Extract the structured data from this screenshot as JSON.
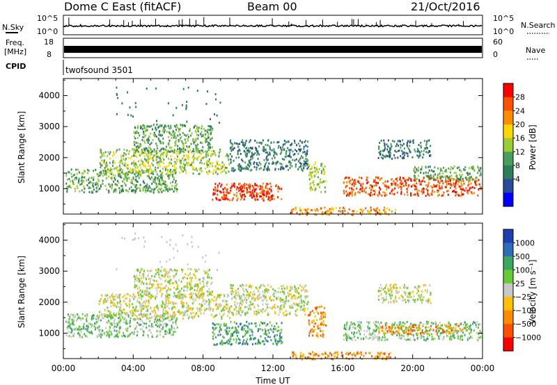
{
  "header": {
    "station": "Dome C East (fitACF)",
    "beam": "Beam 00",
    "date": "21/Oct/2016"
  },
  "top_panels": {
    "nsky_label": "N.Sky",
    "nsky_ticks": [
      "10^5",
      "10^0"
    ],
    "nsearch_label": "N.Search",
    "freq_label_line1": "Freq.",
    "freq_label_line2": "[MHz]",
    "freq_ticks": [
      "18",
      "8"
    ],
    "nave_label": "Nave",
    "nave_ticks": [
      "60",
      "0"
    ],
    "cpid_label": "CPID",
    "cpid_value": "twofsound 3501"
  },
  "chart_data": [
    {
      "type": "heatmap",
      "panel": "power",
      "ylabel": "Slant Range [km]",
      "xlabel": "",
      "x_ticks": [
        "00:00",
        "04:00",
        "08:00",
        "12:00",
        "16:00",
        "20:00",
        "00:00"
      ],
      "xlim_hours": [
        0,
        24
      ],
      "y_ticks": [
        1000,
        2000,
        3000,
        4000
      ],
      "ylim": [
        180,
        4550
      ],
      "colorbar_label": "Power [dB]",
      "colorbar_ticks": [
        "28",
        "24",
        "20",
        "16",
        "12",
        "8",
        "4"
      ],
      "colorbar_colors": [
        "#ff0000",
        "#ff5000",
        "#ff8c00",
        "#ffd700",
        "#9acd32",
        "#4a9e5c",
        "#2e7d5b",
        "#2a4b9b",
        "#0000ff"
      ],
      "scatter_regions": [
        {
          "t0": 0.1,
          "t1": 6.5,
          "r0": 900,
          "r1": 1650,
          "level": 5
        },
        {
          "t0": 2.0,
          "t1": 9.5,
          "r0": 1500,
          "r1": 2300,
          "level": 4
        },
        {
          "t0": 4.0,
          "t1": 8.5,
          "r0": 2200,
          "r1": 3100,
          "level": 5
        },
        {
          "t0": 8.5,
          "t1": 12.5,
          "r0": 650,
          "r1": 1200,
          "level": 1
        },
        {
          "t0": 10.0,
          "t1": 12.0,
          "r0": 750,
          "r1": 1150,
          "level": 0
        },
        {
          "t0": 9.5,
          "t1": 14.0,
          "r0": 1600,
          "r1": 2600,
          "level": 6
        },
        {
          "t0": 14.0,
          "t1": 15.0,
          "r0": 900,
          "r1": 1900,
          "level": 4
        },
        {
          "t0": 16.0,
          "t1": 23.9,
          "r0": 800,
          "r1": 1400,
          "level": 1
        },
        {
          "t0": 20.0,
          "t1": 23.9,
          "r0": 1300,
          "r1": 1750,
          "level": 5
        },
        {
          "t0": 18.0,
          "t1": 21.0,
          "r0": 2000,
          "r1": 2600,
          "level": 6
        },
        {
          "t0": 13.0,
          "t1": 19.0,
          "r0": 180,
          "r1": 420,
          "level": 2
        }
      ]
    },
    {
      "type": "heatmap",
      "panel": "velocity",
      "ylabel": "Slant Range [km]",
      "xlabel": "Time UT",
      "x_ticks": [
        "00:00",
        "04:00",
        "08:00",
        "12:00",
        "16:00",
        "20:00",
        "00:00"
      ],
      "xlim_hours": [
        0,
        24
      ],
      "y_ticks": [
        1000,
        2000,
        3000,
        4000
      ],
      "ylim": [
        180,
        4550
      ],
      "colorbar_label": "Velocity [m s⁻¹]",
      "colorbar_ticks": [
        "1000",
        "500",
        "100",
        "25",
        "−25",
        "−100",
        "−500",
        "−1000"
      ],
      "colorbar_colors": [
        "#1f3fb0",
        "#2e6db8",
        "#3aa860",
        "#66cc33",
        "#c8c8c8",
        "#ffc000",
        "#ff8c00",
        "#ff5000",
        "#ff0000"
      ],
      "scatter_regions": [
        {
          "t0": 0.1,
          "t1": 6.5,
          "r0": 900,
          "r1": 1650,
          "level": 3
        },
        {
          "t0": 2.0,
          "t1": 9.5,
          "r0": 1500,
          "r1": 2300,
          "level": 4
        },
        {
          "t0": 4.0,
          "t1": 8.5,
          "r0": 2200,
          "r1": 3100,
          "level": 4
        },
        {
          "t0": 8.5,
          "t1": 12.5,
          "r0": 650,
          "r1": 1400,
          "level": 2
        },
        {
          "t0": 9.5,
          "t1": 14.0,
          "r0": 1600,
          "r1": 2600,
          "level": 4
        },
        {
          "t0": 14.0,
          "t1": 15.0,
          "r0": 900,
          "r1": 1900,
          "level": 6
        },
        {
          "t0": 16.0,
          "t1": 23.9,
          "r0": 800,
          "r1": 1400,
          "level": 3
        },
        {
          "t0": 18.0,
          "t1": 23.0,
          "r0": 1000,
          "r1": 1300,
          "level": 6
        },
        {
          "t0": 18.0,
          "t1": 21.0,
          "r0": 2000,
          "r1": 2600,
          "level": 4
        },
        {
          "t0": 13.0,
          "t1": 19.0,
          "r0": 180,
          "r1": 420,
          "level": 6
        }
      ]
    }
  ]
}
